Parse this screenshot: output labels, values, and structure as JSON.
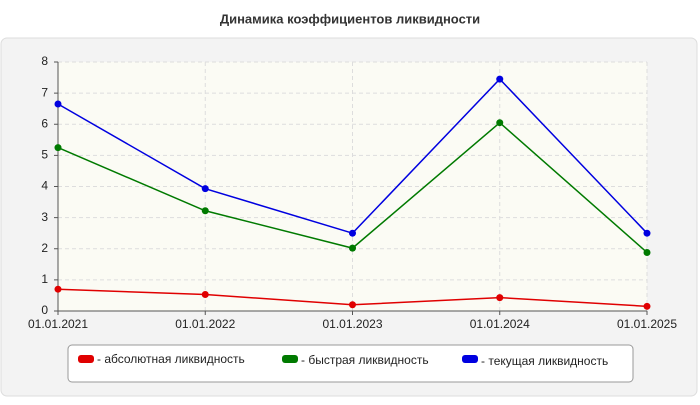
{
  "chart_data": {
    "type": "line",
    "title": "Динамика коэффициентов ликвидности",
    "categories": [
      "01.01.2021",
      "01.01.2022",
      "01.01.2023",
      "01.01.2024",
      "01.01.2025"
    ],
    "series": [
      {
        "name": "- абсолютная ликвидность",
        "color": "#e00000",
        "values": [
          0.7,
          0.53,
          0.2,
          0.43,
          0.15
        ]
      },
      {
        "name": "- быстрая ликвидность",
        "color": "#007a00",
        "values": [
          5.25,
          3.22,
          2.02,
          6.05,
          1.88
        ]
      },
      {
        "name": "- текущая ликвидность",
        "color": "#0000e0",
        "values": [
          6.65,
          3.93,
          2.5,
          7.45,
          2.5
        ]
      }
    ],
    "ylim": [
      0,
      8
    ],
    "yticks": [
      0,
      1,
      2,
      3,
      4,
      5,
      6,
      7,
      8
    ],
    "grid": true,
    "legend": "bottom"
  }
}
